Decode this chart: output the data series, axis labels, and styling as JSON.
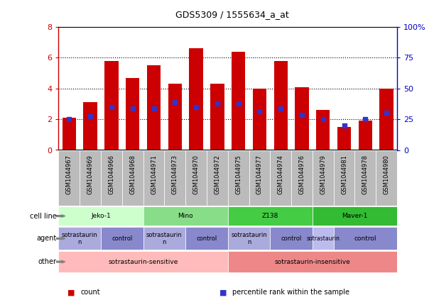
{
  "title": "GDS5309 / 1555634_a_at",
  "samples": [
    "GSM1044967",
    "GSM1044969",
    "GSM1044966",
    "GSM1044968",
    "GSM1044971",
    "GSM1044973",
    "GSM1044970",
    "GSM1044972",
    "GSM1044975",
    "GSM1044977",
    "GSM1044974",
    "GSM1044976",
    "GSM1044979",
    "GSM1044981",
    "GSM1044978",
    "GSM1044980"
  ],
  "bar_values": [
    2.1,
    3.1,
    5.8,
    4.7,
    5.5,
    4.3,
    6.6,
    4.3,
    6.4,
    4.0,
    5.8,
    4.1,
    2.6,
    1.5,
    1.9,
    4.0
  ],
  "dot_values": [
    2.0,
    2.2,
    2.8,
    2.7,
    2.7,
    3.1,
    2.8,
    3.0,
    3.0,
    2.5,
    2.7,
    2.3,
    2.0,
    1.6,
    2.0,
    2.4
  ],
  "ylim_left": [
    0,
    8
  ],
  "ylim_right": [
    0,
    100
  ],
  "yticks_left": [
    0,
    2,
    4,
    6,
    8
  ],
  "yticks_right": [
    0,
    25,
    50,
    75,
    100
  ],
  "bar_color": "#cc0000",
  "dot_color": "#3333cc",
  "cell_line_row": {
    "groups": [
      {
        "label": "Jeko-1",
        "start": 0,
        "end": 4,
        "color": "#ccffcc"
      },
      {
        "label": "Mino",
        "start": 4,
        "end": 8,
        "color": "#88dd88"
      },
      {
        "label": "Z138",
        "start": 8,
        "end": 12,
        "color": "#44cc44"
      },
      {
        "label": "Maver-1",
        "start": 12,
        "end": 16,
        "color": "#33bb33"
      }
    ]
  },
  "agent_row": {
    "groups": [
      {
        "label": "sotrastaurin\nn",
        "start": 0,
        "end": 2,
        "color": "#aaaadd"
      },
      {
        "label": "control",
        "start": 2,
        "end": 4,
        "color": "#8888cc"
      },
      {
        "label": "sotrastaurin\nn",
        "start": 4,
        "end": 6,
        "color": "#aaaadd"
      },
      {
        "label": "control",
        "start": 6,
        "end": 8,
        "color": "#8888cc"
      },
      {
        "label": "sotrastaurin\nn",
        "start": 8,
        "end": 10,
        "color": "#aaaadd"
      },
      {
        "label": "control",
        "start": 10,
        "end": 12,
        "color": "#8888cc"
      },
      {
        "label": "sotrastaurin",
        "start": 12,
        "end": 13,
        "color": "#bbbbee"
      },
      {
        "label": "control",
        "start": 13,
        "end": 16,
        "color": "#8888cc"
      }
    ]
  },
  "other_row": {
    "groups": [
      {
        "label": "sotrastaurin-sensitive",
        "start": 0,
        "end": 8,
        "color": "#ffbbbb"
      },
      {
        "label": "sotrastaurin-insensitive",
        "start": 8,
        "end": 16,
        "color": "#ee8888"
      }
    ]
  },
  "row_labels": [
    "cell line",
    "agent",
    "other"
  ],
  "legend_items": [
    {
      "color": "#cc0000",
      "label": "count"
    },
    {
      "color": "#3333cc",
      "label": "percentile rank within the sample"
    }
  ],
  "sample_bg_color": "#bbbbbb",
  "right_axis_color": "#0000cc",
  "left_axis_color": "#cc0000",
  "grid_yticks": [
    2,
    4,
    6
  ]
}
